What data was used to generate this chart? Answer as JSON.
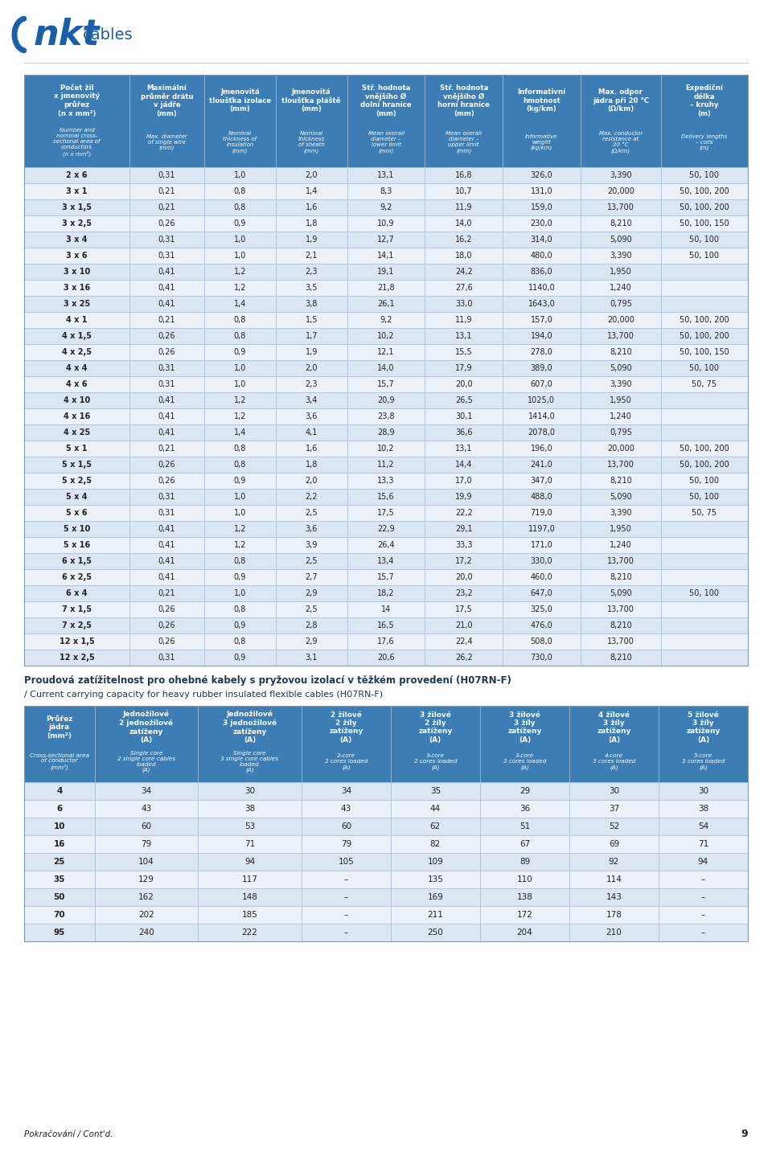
{
  "header_row1_cz": [
    "Počet žil\nx jmenovitý\nprůřez\n(n x mm²)",
    "Maximální\nprůměr drátu\nv jádře\n(mm)",
    "Jmenovitá\ntloušťka izolace\n(mm)",
    "Jmenovitá\ntloušťka pláště\n(mm)",
    "Stř. hodnota\nvnějšího Ø\ndolní hranice\n(mm)",
    "Stř. hodnota\nvnějšího Ø\nhorní hranice\n(mm)",
    "Informativní\nhmotnost\n(kg/km)",
    "Max. odpor\njádra při 20 °C\n(Ω/km)",
    "Expediční\ndélka\n– kruhy\n(m)"
  ],
  "header_row1_en": [
    "Number and\nnominal cross-\nsectional area of\nconductors\n(n x mm²)",
    "Max. diameter\nof single wire\n(mm)",
    "Nominal\nthickness of\ninsulation\n(mm)",
    "Nominal\nthickness\nof sheath\n(mm)",
    "Mean overall\ndiameter –\nlower limit\n(mm)",
    "Mean overall\ndiameter –\nupper limit\n(mm)",
    "Informative\nweight\n(kg/km)",
    "Max. conductor\nresistance at\n20 °C\n(Ω/km)",
    "Delivery lengths\n– coils\n(m)"
  ],
  "table1_data": [
    [
      "2 x 6",
      "0,31",
      "1,0",
      "2,0",
      "13,1",
      "16,8",
      "326,0",
      "3,390",
      "50, 100"
    ],
    [
      "3 x 1",
      "0,21",
      "0,8",
      "1,4",
      "8,3",
      "10,7",
      "131,0",
      "20,000",
      "50, 100, 200"
    ],
    [
      "3 x 1,5",
      "0,21",
      "0,8",
      "1,6",
      "9,2",
      "11,9",
      "159,0",
      "13,700",
      "50, 100, 200"
    ],
    [
      "3 x 2,5",
      "0,26",
      "0,9",
      "1,8",
      "10,9",
      "14,0",
      "230,0",
      "8,210",
      "50, 100, 150"
    ],
    [
      "3 x 4",
      "0,31",
      "1,0",
      "1,9",
      "12,7",
      "16,2",
      "314,0",
      "5,090",
      "50, 100"
    ],
    [
      "3 x 6",
      "0,31",
      "1,0",
      "2,1",
      "14,1",
      "18,0",
      "480,0",
      "3,390",
      "50, 100"
    ],
    [
      "3 x 10",
      "0,41",
      "1,2",
      "2,3",
      "19,1",
      "24,2",
      "836,0",
      "1,950",
      ""
    ],
    [
      "3 x 16",
      "0,41",
      "1,2",
      "3,5",
      "21,8",
      "27,6",
      "1140,0",
      "1,240",
      ""
    ],
    [
      "3 x 25",
      "0,41",
      "1,4",
      "3,8",
      "26,1",
      "33,0",
      "1643,0",
      "0,795",
      ""
    ],
    [
      "4 x 1",
      "0,21",
      "0,8",
      "1,5",
      "9,2",
      "11,9",
      "157,0",
      "20,000",
      "50, 100, 200"
    ],
    [
      "4 x 1,5",
      "0,26",
      "0,8",
      "1,7",
      "10,2",
      "13,1",
      "194,0",
      "13,700",
      "50, 100, 200"
    ],
    [
      "4 x 2,5",
      "0,26",
      "0,9",
      "1,9",
      "12,1",
      "15,5",
      "278,0",
      "8,210",
      "50, 100, 150"
    ],
    [
      "4 x 4",
      "0,31",
      "1,0",
      "2,0",
      "14,0",
      "17,9",
      "389,0",
      "5,090",
      "50, 100"
    ],
    [
      "4 x 6",
      "0,31",
      "1,0",
      "2,3",
      "15,7",
      "20,0",
      "607,0",
      "3,390",
      "50, 75"
    ],
    [
      "4 x 10",
      "0,41",
      "1,2",
      "3,4",
      "20,9",
      "26,5",
      "1025,0",
      "1,950",
      ""
    ],
    [
      "4 x 16",
      "0,41",
      "1,2",
      "3,6",
      "23,8",
      "30,1",
      "1414,0",
      "1,240",
      ""
    ],
    [
      "4 x 25",
      "0,41",
      "1,4",
      "4,1",
      "28,9",
      "36,6",
      "2078,0",
      "0,795",
      ""
    ],
    [
      "5 x 1",
      "0,21",
      "0,8",
      "1,6",
      "10,2",
      "13,1",
      "196,0",
      "20,000",
      "50, 100, 200"
    ],
    [
      "5 x 1,5",
      "0,26",
      "0,8",
      "1,8",
      "11,2",
      "14,4",
      "241,0",
      "13,700",
      "50, 100, 200"
    ],
    [
      "5 x 2,5",
      "0,26",
      "0,9",
      "2,0",
      "13,3",
      "17,0",
      "347,0",
      "8,210",
      "50, 100"
    ],
    [
      "5 x 4",
      "0,31",
      "1,0",
      "2,2",
      "15,6",
      "19,9",
      "488,0",
      "5,090",
      "50, 100"
    ],
    [
      "5 x 6",
      "0,31",
      "1,0",
      "2,5",
      "17,5",
      "22,2",
      "719,0",
      "3,390",
      "50, 75"
    ],
    [
      "5 x 10",
      "0,41",
      "1,2",
      "3,6",
      "22,9",
      "29,1",
      "1197,0",
      "1,950",
      ""
    ],
    [
      "5 x 16",
      "0,41",
      "1,2",
      "3,9",
      "26,4",
      "33,3",
      "171,0",
      "1,240",
      ""
    ],
    [
      "6 x 1,5",
      "0,41",
      "0,8",
      "2,5",
      "13,4",
      "17,2",
      "330,0",
      "13,700",
      ""
    ],
    [
      "6 x 2,5",
      "0,41",
      "0,9",
      "2,7",
      "15,7",
      "20,0",
      "460,0",
      "8,210",
      ""
    ],
    [
      "6 x 4",
      "0,21",
      "1,0",
      "2,9",
      "18,2",
      "23,2",
      "647,0",
      "5,090",
      "50, 100"
    ],
    [
      "7 x 1,5",
      "0,26",
      "0,8",
      "2,5",
      "14",
      "17,5",
      "325,0",
      "13,700",
      ""
    ],
    [
      "7 x 2,5",
      "0,26",
      "0,9",
      "2,8",
      "16,5",
      "21,0",
      "476,0",
      "8,210",
      ""
    ],
    [
      "12 x 1,5",
      "0,26",
      "0,8",
      "2,9",
      "17,6",
      "22,4",
      "508,0",
      "13,700",
      ""
    ],
    [
      "12 x 2,5",
      "0,31",
      "0,9",
      "3,1",
      "20,6",
      "26,2",
      "730,0",
      "8,210",
      ""
    ]
  ],
  "section2_title_line1": "Proudová zatížitelnost pro ohebné kabely s pryžovou izolací v těžkém provedení (H07RN-F)",
  "section2_title_line2": "/ Current carrying capacity for heavy rubber insulated flexible cables (H07RN-F)",
  "header2_cz": [
    "Průřez\njádra\n(mm²)",
    "Jednožilové\n2 jednožilové\nzatíženy\n(A)",
    "Jednožilové\n3 jednožilové\nzatíženy\n(A)",
    "2 žilové\n2 žíly\nzatíženy\n(A)",
    "3 žilové\n2 žíly\nzatíženy\n(A)",
    "3 žilové\n3 žíly\nzatíženy\n(A)",
    "4 žilové\n3 žíly\nzatíženy\n(A)",
    "5 žilové\n3 žíly\nzatíženy\n(A)"
  ],
  "header2_en": [
    "Cross-sectional area\nof conductor\n(mm²)",
    "Single core\n2 single core cables\nloaded\n(A)",
    "Single core\n3 single core cables\nloaded\n(A)",
    "2-core\n2 cores loaded\n(A)",
    "3-core\n2 cores loaded\n(A)",
    "3-core\n3 cores loaded\n(A)",
    "4-core\n3 cores loaded\n(A)",
    "5-core\n3 cores loaded\n(A)"
  ],
  "table2_data": [
    [
      "4",
      "34",
      "30",
      "34",
      "35",
      "29",
      "30",
      "30"
    ],
    [
      "6",
      "43",
      "38",
      "43",
      "44",
      "36",
      "37",
      "38"
    ],
    [
      "10",
      "60",
      "53",
      "60",
      "62",
      "51",
      "52",
      "54"
    ],
    [
      "16",
      "79",
      "71",
      "79",
      "82",
      "67",
      "69",
      "71"
    ],
    [
      "25",
      "104",
      "94",
      "105",
      "109",
      "89",
      "92",
      "94"
    ],
    [
      "35",
      "129",
      "117",
      "–",
      "135",
      "110",
      "114",
      "–"
    ],
    [
      "50",
      "162",
      "148",
      "–",
      "169",
      "138",
      "143",
      "–"
    ],
    [
      "70",
      "202",
      "185",
      "–",
      "211",
      "172",
      "178",
      "–"
    ],
    [
      "95",
      "240",
      "222",
      "–",
      "250",
      "204",
      "210",
      "–"
    ]
  ],
  "footer_text": "Pokračování / Cont'd.",
  "page_number": "9",
  "logo_nkt_color": "#1a5fa8",
  "colors": {
    "header_bg": "#3d7db5",
    "header_text": "#ffffff",
    "row_odd_bg": "#dbe6f3",
    "row_even_bg": "#eaf1f8",
    "text_dark": "#222222",
    "border": "#a0b8d0",
    "section_title_color": "#1a3a5c",
    "page_bg": "#ffffff"
  },
  "col_ratios1": [
    1.15,
    0.82,
    0.78,
    0.78,
    0.85,
    0.85,
    0.85,
    0.88,
    0.95
  ],
  "col_ratios2": [
    0.75,
    1.1,
    1.1,
    0.95,
    0.95,
    0.95,
    0.95,
    0.95
  ]
}
